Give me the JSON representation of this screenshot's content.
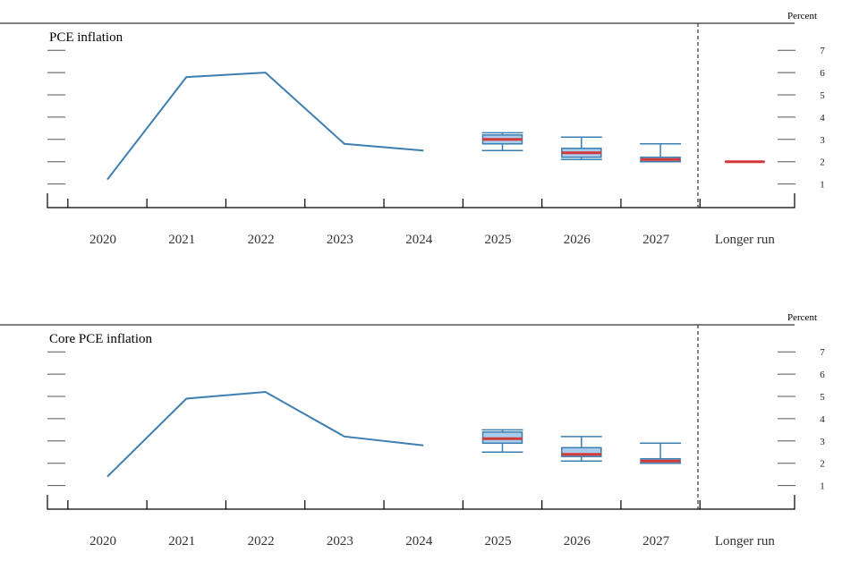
{
  "colors": {
    "line": "#3d7fb0",
    "box_fill": "#a9cbec",
    "box_stroke": "#3d7fb0",
    "median": "#d23a3a",
    "axis": "#000000",
    "tick_mark": "#555555",
    "divider": "#333333"
  },
  "chart_data": [
    {
      "type": "line",
      "title": "PCE inflation",
      "unit": "Percent",
      "categories": [
        "2020",
        "2021",
        "2022",
        "2023",
        "2024",
        "2025",
        "2026",
        "2027",
        "Longer run"
      ],
      "ylim": [
        0,
        7
      ],
      "yticks": [
        1,
        2,
        3,
        4,
        5,
        6,
        7
      ],
      "ytick_labels": [
        "1",
        "2",
        "3",
        "4",
        "5",
        "6",
        "7"
      ],
      "grid": false,
      "history": {
        "x": [
          "2020",
          "2021",
          "2022",
          "2023",
          "2024"
        ],
        "values": [
          1.2,
          5.8,
          6.0,
          2.8,
          2.5
        ]
      },
      "projections": [
        {
          "x": "2025",
          "min": 2.5,
          "q1": 2.8,
          "median": 3.0,
          "q3": 3.2,
          "max": 3.3
        },
        {
          "x": "2026",
          "min": 2.1,
          "q1": 2.2,
          "median": 2.4,
          "q3": 2.6,
          "max": 3.1
        },
        {
          "x": "2027",
          "min": 2.0,
          "q1": 2.0,
          "median": 2.1,
          "q3": 2.2,
          "max": 2.8
        },
        {
          "x": "Longer run",
          "min": 2.0,
          "q1": 2.0,
          "median": 2.0,
          "q3": 2.0,
          "max": 2.0
        }
      ]
    },
    {
      "type": "line",
      "title": "Core PCE inflation",
      "unit": "Percent",
      "categories": [
        "2020",
        "2021",
        "2022",
        "2023",
        "2024",
        "2025",
        "2026",
        "2027",
        "Longer run"
      ],
      "ylim": [
        0,
        7
      ],
      "yticks": [
        1,
        2,
        3,
        4,
        5,
        6,
        7
      ],
      "ytick_labels": [
        "1",
        "2",
        "3",
        "4",
        "5",
        "6",
        "7"
      ],
      "grid": false,
      "history": {
        "x": [
          "2020",
          "2021",
          "2022",
          "2023",
          "2024"
        ],
        "values": [
          1.4,
          4.9,
          5.2,
          3.2,
          2.8
        ]
      },
      "projections": [
        {
          "x": "2025",
          "min": 2.5,
          "q1": 2.9,
          "median": 3.1,
          "q3": 3.4,
          "max": 3.5
        },
        {
          "x": "2026",
          "min": 2.1,
          "q1": 2.3,
          "median": 2.4,
          "q3": 2.7,
          "max": 3.2
        },
        {
          "x": "2027",
          "min": 2.0,
          "q1": 2.0,
          "median": 2.1,
          "q3": 2.2,
          "max": 2.9
        }
      ]
    }
  ]
}
